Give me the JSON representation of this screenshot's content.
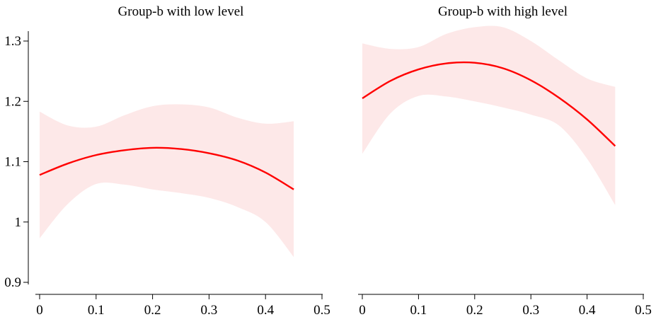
{
  "chart_data": [
    {
      "type": "line",
      "title": "Group-b with low level",
      "xlabel": "",
      "ylabel": "",
      "xlim": [
        0,
        0.5
      ],
      "ylim": [
        0.9,
        1.3
      ],
      "x_ticks": [
        0,
        0.1,
        0.2,
        0.3,
        0.4,
        0.5
      ],
      "x_tick_labels": [
        "0",
        "0.1",
        "0.2",
        "0.3",
        "0.4",
        "0.5"
      ],
      "y_ticks": [
        0.9,
        1,
        1.1,
        1.2,
        1.3
      ],
      "y_tick_labels": [
        "0.9",
        "1",
        "1.1",
        "1.2",
        "1.3"
      ],
      "grid": false,
      "x": [
        0,
        0.05,
        0.1,
        0.15,
        0.2,
        0.25,
        0.3,
        0.35,
        0.4,
        0.45
      ],
      "series": [
        {
          "values": [
            1.078,
            1.097,
            1.111,
            1.119,
            1.123,
            1.121,
            1.114,
            1.102,
            1.082,
            1.054
          ],
          "band_upper": [
            1.183,
            1.16,
            1.158,
            1.177,
            1.192,
            1.195,
            1.19,
            1.173,
            1.163,
            1.167
          ],
          "band_lower": [
            0.973,
            1.03,
            1.063,
            1.062,
            1.054,
            1.048,
            1.04,
            1.025,
            1.0,
            0.942
          ]
        }
      ],
      "colors": {
        "line": "#ff0000",
        "band": "#fde8e8"
      }
    },
    {
      "type": "line",
      "title": "Group-b with high level",
      "xlabel": "",
      "ylabel": "",
      "xlim": [
        0,
        0.5
      ],
      "ylim": [
        0.9,
        1.3
      ],
      "x_ticks": [
        0,
        0.1,
        0.2,
        0.3,
        0.4,
        0.5
      ],
      "x_tick_labels": [
        "0",
        "0.1",
        "0.2",
        "0.3",
        "0.4",
        "0.5"
      ],
      "y_ticks": [],
      "y_tick_labels": [],
      "grid": false,
      "x": [
        0,
        0.05,
        0.1,
        0.15,
        0.2,
        0.25,
        0.3,
        0.35,
        0.4,
        0.45
      ],
      "series": [
        {
          "values": [
            1.205,
            1.234,
            1.253,
            1.263,
            1.264,
            1.255,
            1.235,
            1.206,
            1.17,
            1.126
          ],
          "band_upper": [
            1.296,
            1.287,
            1.29,
            1.312,
            1.323,
            1.323,
            1.3,
            1.268,
            1.238,
            1.224
          ],
          "band_lower": [
            1.113,
            1.18,
            1.209,
            1.208,
            1.2,
            1.19,
            1.178,
            1.16,
            1.105,
            1.028
          ]
        }
      ],
      "colors": {
        "line": "#ff0000",
        "band": "#fde8e8"
      }
    }
  ]
}
